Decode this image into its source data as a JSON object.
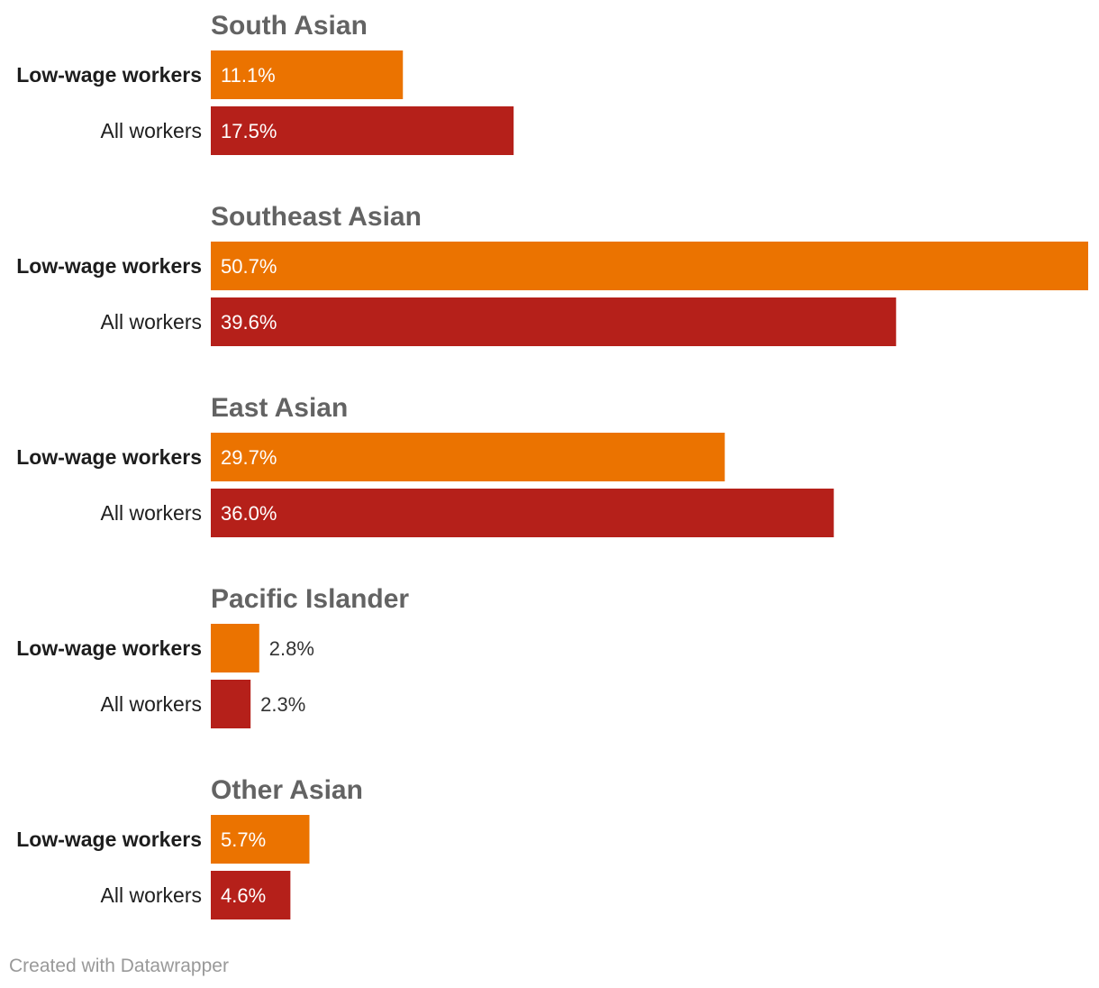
{
  "chart_data": {
    "type": "bar",
    "orientation": "horizontal",
    "value_suffix": "%",
    "xlim": [
      0,
      50.7
    ],
    "series": [
      {
        "name": "Low-wage workers",
        "color": "#eb7300",
        "label_bold": true
      },
      {
        "name": "All workers",
        "color": "#b5201a",
        "label_bold": false
      }
    ],
    "groups": [
      {
        "title": "South Asian",
        "values": [
          11.1,
          17.5
        ]
      },
      {
        "title": "Southeast Asian",
        "values": [
          50.7,
          39.6
        ]
      },
      {
        "title": "East Asian",
        "values": [
          29.7,
          36.0
        ]
      },
      {
        "title": "Pacific Islander",
        "values": [
          2.8,
          2.3
        ]
      },
      {
        "title": "Other Asian",
        "values": [
          5.7,
          4.6
        ]
      }
    ]
  },
  "footer": {
    "credit": "Created with Datawrapper"
  }
}
